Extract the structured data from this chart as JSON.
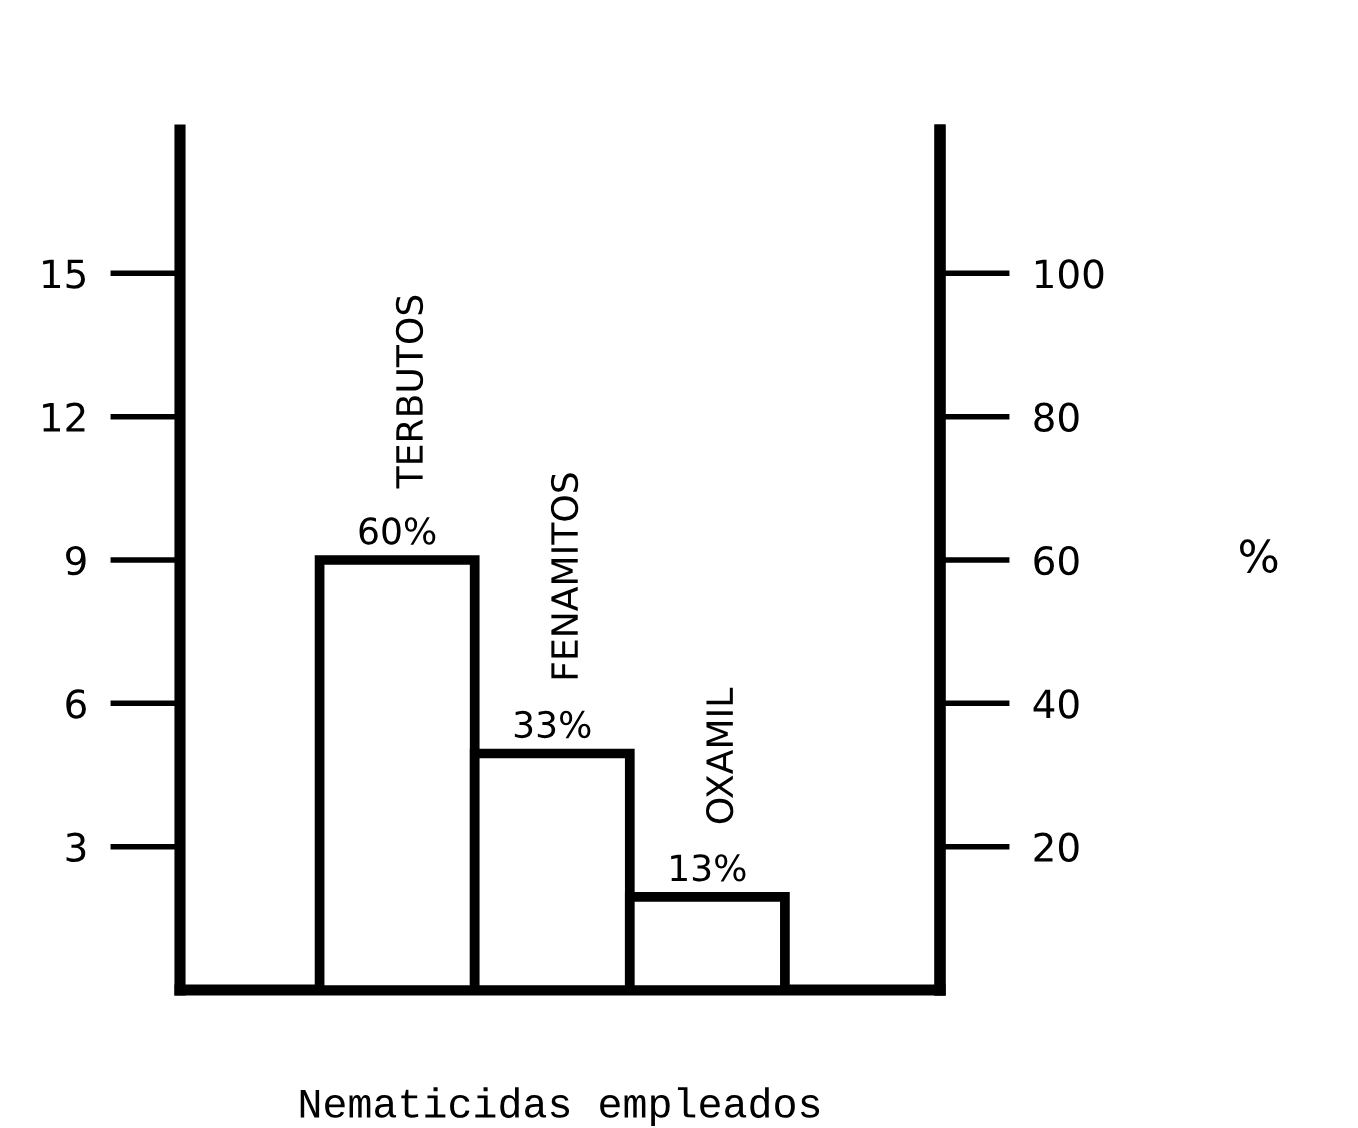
{
  "chart_data": {
    "type": "bar",
    "categories": [
      "TERBUTOS",
      "FENAMITOS",
      "OXAMIL"
    ],
    "series": [
      {
        "values": [
          60,
          33,
          13
        ],
        "axis": "y2"
      }
    ],
    "value_labels": [
      "60%",
      "33%",
      "13%"
    ],
    "color": "#ffffff",
    "xlabel": "Nematicidas empleados",
    "y2label": "%",
    "ylim": [
      0,
      18
    ],
    "yticks": [
      3,
      6,
      9,
      12,
      15
    ],
    "y2lim": [
      0,
      120
    ],
    "y2ticks": [
      20,
      40,
      60,
      80,
      100
    ],
    "grid": false,
    "legend": false
  }
}
